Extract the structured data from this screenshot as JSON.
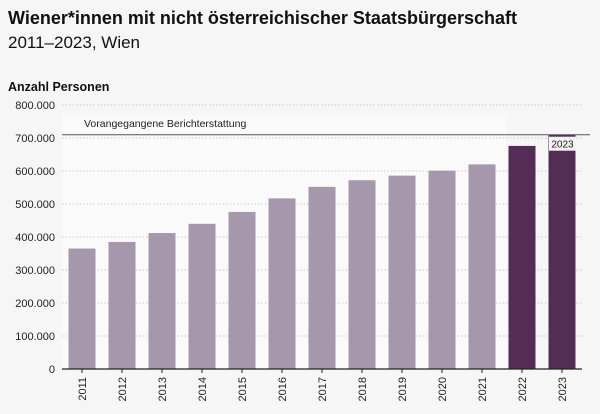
{
  "chart_data": {
    "type": "bar",
    "title": "Wiener*innen mit nicht österreichischer Staatsbürgerschaft",
    "subtitle": "2011–2023, Wien",
    "ylabel": "Anzahl Personen",
    "xlabel": "",
    "ylim": [
      0,
      800000
    ],
    "yticks": [
      0,
      100000,
      200000,
      300000,
      400000,
      500000,
      600000,
      700000,
      800000
    ],
    "ytick_labels": [
      "0",
      "100.000",
      "200.000",
      "300.000",
      "400.000",
      "500.000",
      "600.000",
      "700.000",
      "800.000"
    ],
    "categories": [
      "2011",
      "2012",
      "2013",
      "2014",
      "2015",
      "2016",
      "2017",
      "2018",
      "2019",
      "2020",
      "2021",
      "2022",
      "2023"
    ],
    "values": [
      365000,
      385000,
      412000,
      440000,
      476000,
      517000,
      552000,
      572000,
      586000,
      601000,
      620000,
      676000,
      710000
    ],
    "previous_reporting_label": "Vorangegangene Berichterstattung",
    "previous_reporting_range": [
      "2011",
      "2021"
    ],
    "reference_line": {
      "value": 710000,
      "label": "2023"
    },
    "grid": true,
    "colors": {
      "previous": "#a797ac",
      "current": "#532d56",
      "background_band": "#fafafa",
      "page": "#f6f6f6"
    }
  }
}
